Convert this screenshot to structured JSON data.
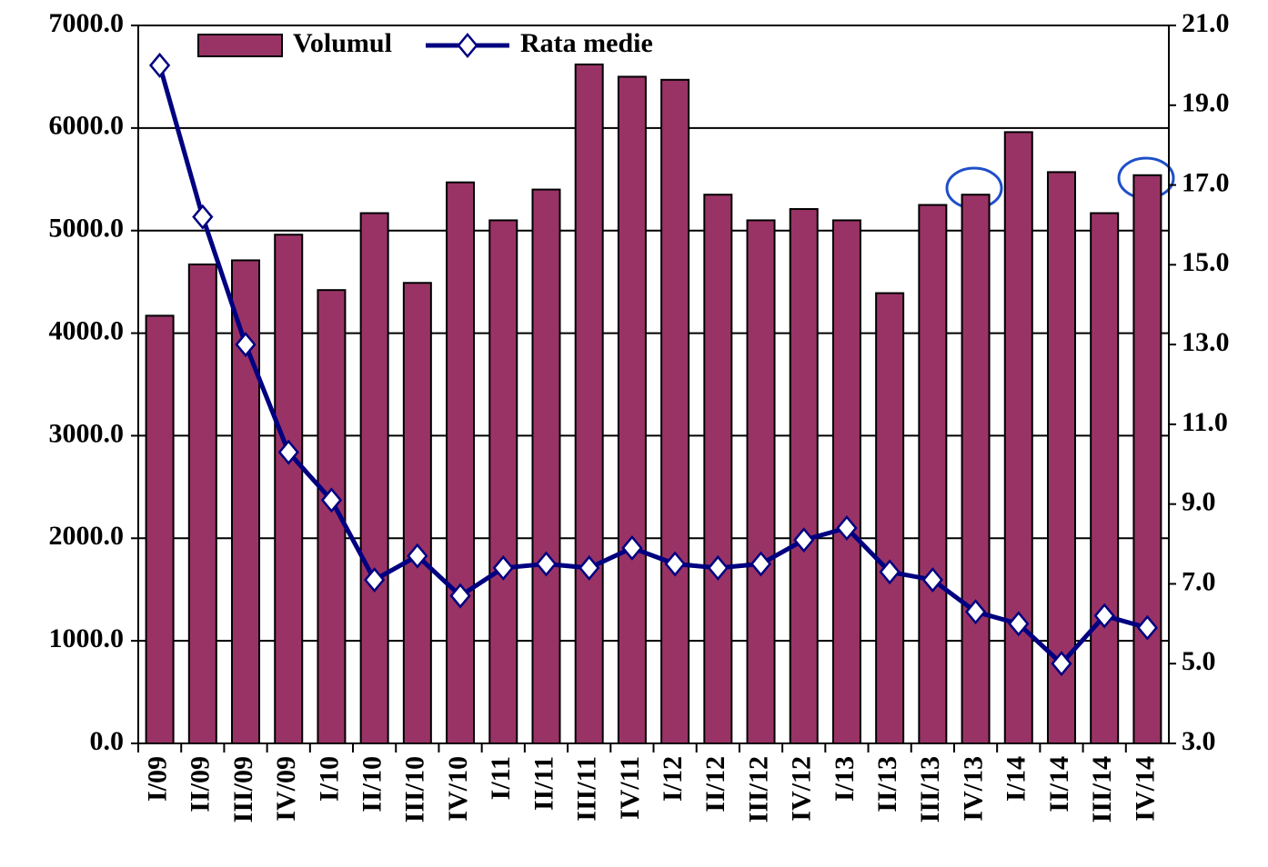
{
  "chart_data": {
    "type": "bar-line",
    "categories": [
      "I/09",
      "II/09",
      "III/09",
      "IV/09",
      "I/10",
      "II/10",
      "III/10",
      "IV/10",
      "I/11",
      "II/11",
      "III/11",
      "IV/11",
      "I/12",
      "II/12",
      "III/12",
      "IV/12",
      "I/13",
      "II/13",
      "III/13",
      "IV/13",
      "I/14",
      "II/14",
      "III/14",
      "IV/14"
    ],
    "series": [
      {
        "name": "Volumul",
        "type": "bar",
        "color": "#993366",
        "values": [
          4170,
          4670,
          4710,
          4960,
          4420,
          5170,
          4490,
          5470,
          5100,
          5400,
          6620,
          6500,
          6470,
          5350,
          5100,
          5210,
          5100,
          4390,
          5250,
          5350,
          5960,
          5570,
          5170,
          5540
        ]
      },
      {
        "name": "Rata medie",
        "type": "line",
        "axis": "y2",
        "color": "#000080",
        "values": [
          20.0,
          16.2,
          13.0,
          10.3,
          9.1,
          7.1,
          7.7,
          6.7,
          7.4,
          7.5,
          7.4,
          7.9,
          7.5,
          7.4,
          7.5,
          8.1,
          8.4,
          7.3,
          7.1,
          6.3,
          6.0,
          5.0,
          6.2,
          5.9
        ]
      }
    ],
    "ylim": [
      0,
      7000
    ],
    "yticks": [
      {
        "value": 0,
        "label": "0.0"
      },
      {
        "value": 1000,
        "label": "1000.0"
      },
      {
        "value": 2000,
        "label": "2000.0"
      },
      {
        "value": 3000,
        "label": "3000.0"
      },
      {
        "value": 4000,
        "label": "4000.0"
      },
      {
        "value": 5000,
        "label": "5000.0"
      },
      {
        "value": 6000,
        "label": "6000.0"
      },
      {
        "value": 7000,
        "label": "7000.0"
      }
    ],
    "y2lim": [
      3,
      21
    ],
    "y2ticks": [
      {
        "value": 3,
        "label": "3.0"
      },
      {
        "value": 5,
        "label": "5.0"
      },
      {
        "value": 7,
        "label": "7.0"
      },
      {
        "value": 9,
        "label": "9.0"
      },
      {
        "value": 11,
        "label": "11.0"
      },
      {
        "value": 13,
        "label": "13.0"
      },
      {
        "value": 15,
        "label": "15.0"
      },
      {
        "value": 17,
        "label": "17.0"
      },
      {
        "value": 19,
        "label": "19.0"
      },
      {
        "value": 21,
        "label": "21.0"
      }
    ],
    "grid": true
  }
}
